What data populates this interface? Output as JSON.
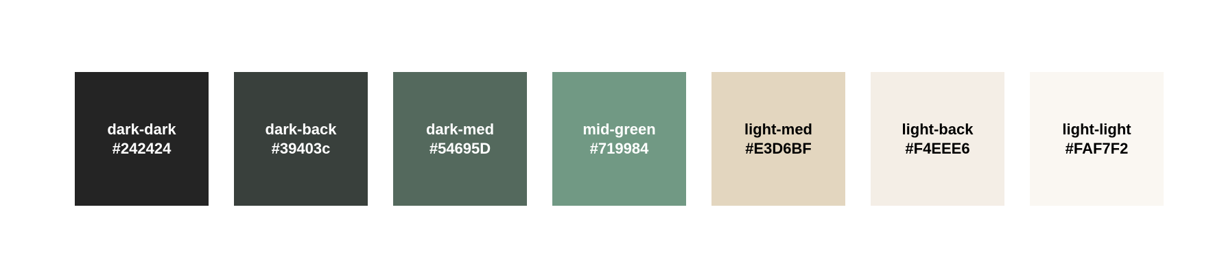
{
  "swatches": [
    {
      "label": "dark-dark",
      "hex": "#242424",
      "color": "#242424",
      "text_color": "#ffffff"
    },
    {
      "label": "dark-back",
      "hex": "#39403c",
      "color": "#39403c",
      "text_color": "#ffffff"
    },
    {
      "label": "dark-med",
      "hex": "#54695D",
      "color": "#54695D",
      "text_color": "#ffffff"
    },
    {
      "label": "mid-green",
      "hex": "#719984",
      "color": "#719984",
      "text_color": "#ffffff"
    },
    {
      "label": "light-med",
      "hex": "#E3D6BF",
      "color": "#E3D6BF",
      "text_color": "#000000"
    },
    {
      "label": "light-back",
      "hex": "#F4EEE6",
      "color": "#F4EEE6",
      "text_color": "#000000"
    },
    {
      "label": "light-light",
      "hex": "#FAF7F2",
      "color": "#FAF7F2",
      "text_color": "#000000"
    }
  ]
}
